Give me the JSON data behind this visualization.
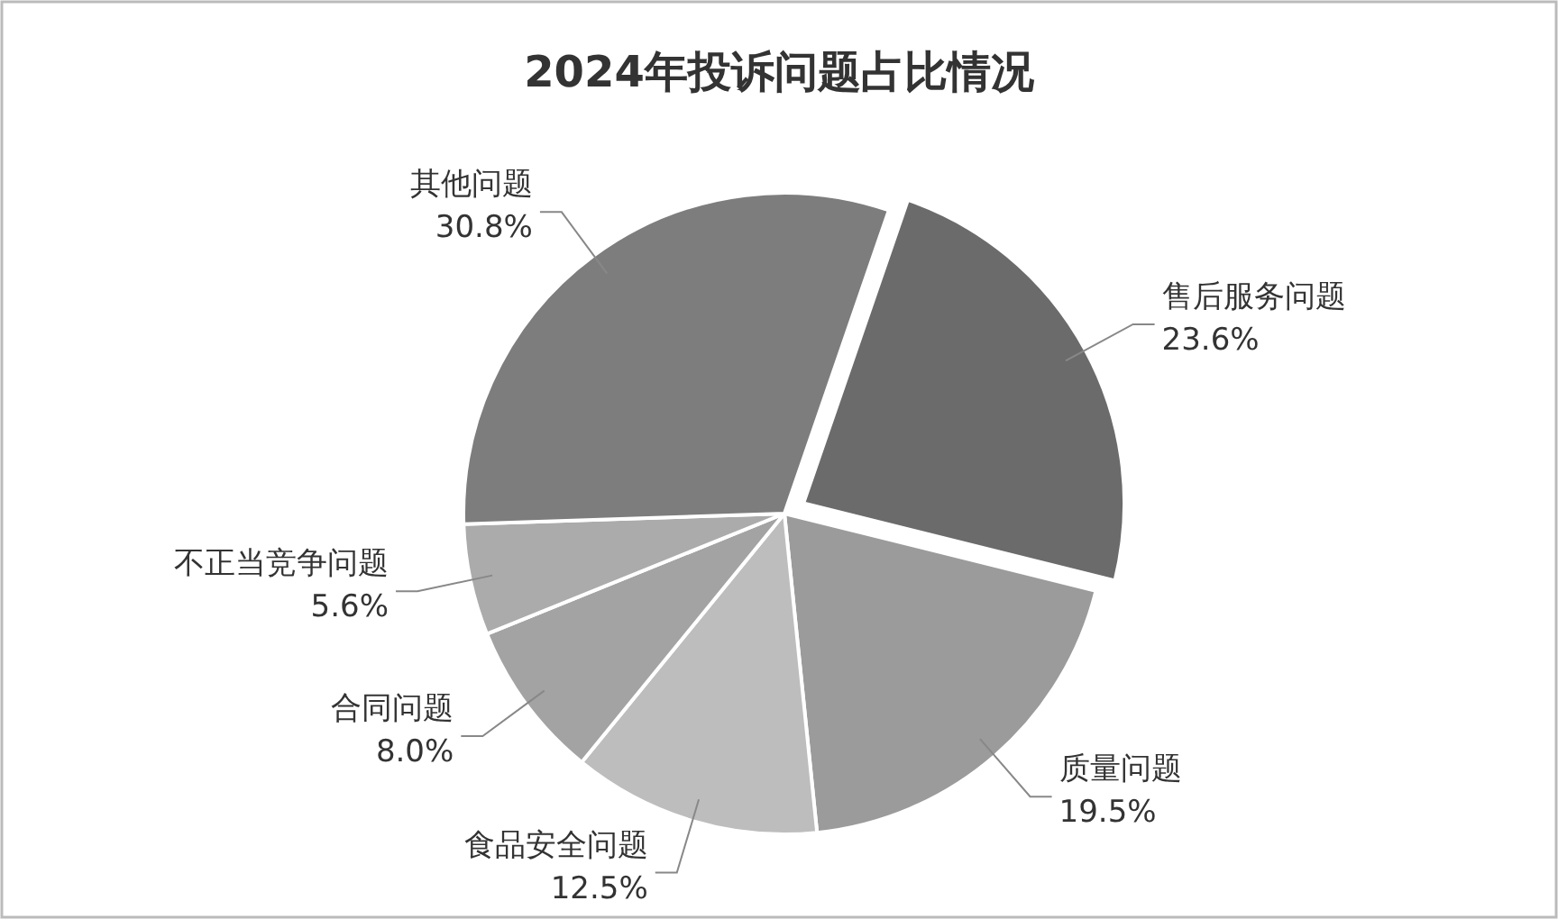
{
  "chart_data": {
    "type": "pie",
    "title": "2024年投诉问题占比情况",
    "categories": [
      "售后服务问题",
      "质量问题",
      "食品安全问题",
      "合同问题",
      "不正当竞争问题",
      "其他问题"
    ],
    "values": [
      23.6,
      19.5,
      12.5,
      8.0,
      5.6,
      30.8
    ],
    "value_labels": [
      "23.6%",
      "19.5%",
      "12.5%",
      "8.0%",
      "5.6%",
      "30.8%"
    ],
    "colors": [
      "#6b6b6b",
      "#9b9b9b",
      "#bdbdbd",
      "#a3a3a3",
      "#ababab",
      "#7d7d7d"
    ],
    "legend": false
  }
}
